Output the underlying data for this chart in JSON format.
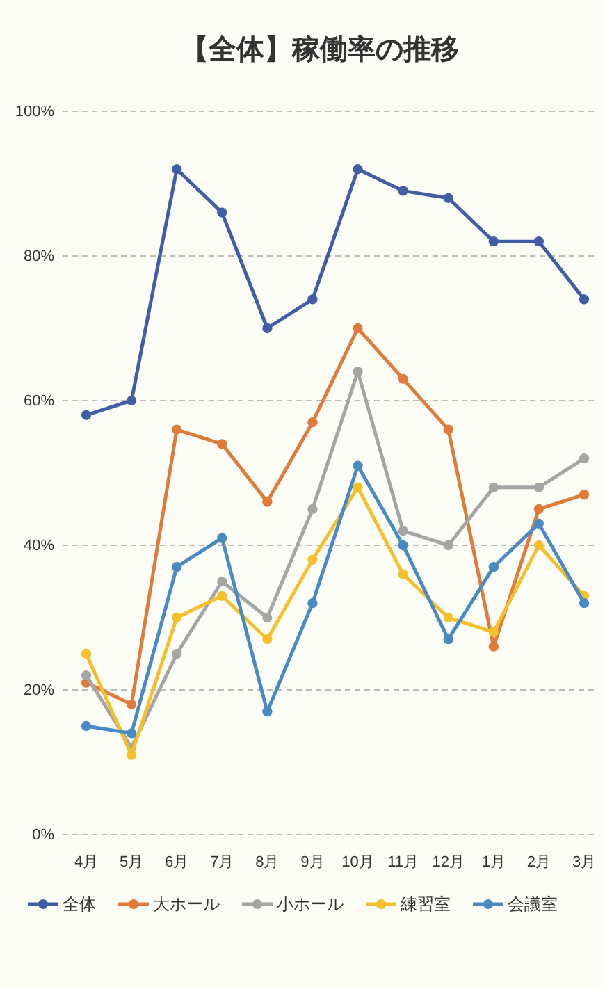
{
  "chart_data": {
    "type": "line",
    "title": "【全体】稼働率の推移",
    "categories": [
      "4月",
      "5月",
      "6月",
      "7月",
      "8月",
      "9月",
      "10月",
      "11月",
      "12月",
      "1月",
      "2月",
      "3月"
    ],
    "series": [
      {
        "name": "全体",
        "color": "#3f5ea6",
        "values": [
          58,
          60,
          92,
          86,
          70,
          74,
          92,
          89,
          88,
          82,
          82,
          74
        ]
      },
      {
        "name": "大ホール",
        "color": "#e07b39",
        "values": [
          21,
          18,
          56,
          54,
          46,
          57,
          70,
          63,
          56,
          26,
          45,
          47
        ]
      },
      {
        "name": "小ホール",
        "color": "#a5a5a5",
        "values": [
          22,
          12,
          25,
          35,
          30,
          45,
          64,
          42,
          40,
          48,
          48,
          52
        ]
      },
      {
        "name": "練習室",
        "color": "#f5c02a",
        "values": [
          25,
          11,
          30,
          33,
          27,
          38,
          48,
          36,
          30,
          28,
          40,
          33
        ]
      },
      {
        "name": "会議室",
        "color": "#4a8ac4",
        "values": [
          15,
          14,
          37,
          41,
          17,
          32,
          51,
          40,
          27,
          37,
          43,
          32
        ]
      }
    ],
    "ylim": [
      0,
      100
    ],
    "yticks": [
      {
        "value": 0,
        "label": "0%"
      },
      {
        "value": 20,
        "label": "20%"
      },
      {
        "value": 40,
        "label": "40%"
      },
      {
        "value": 60,
        "label": "60%"
      },
      {
        "value": 80,
        "label": "80%"
      },
      {
        "value": 100,
        "label": "100%"
      }
    ],
    "grid": "y",
    "legend": "bottom",
    "marker": "circle",
    "line_style": "solid"
  }
}
